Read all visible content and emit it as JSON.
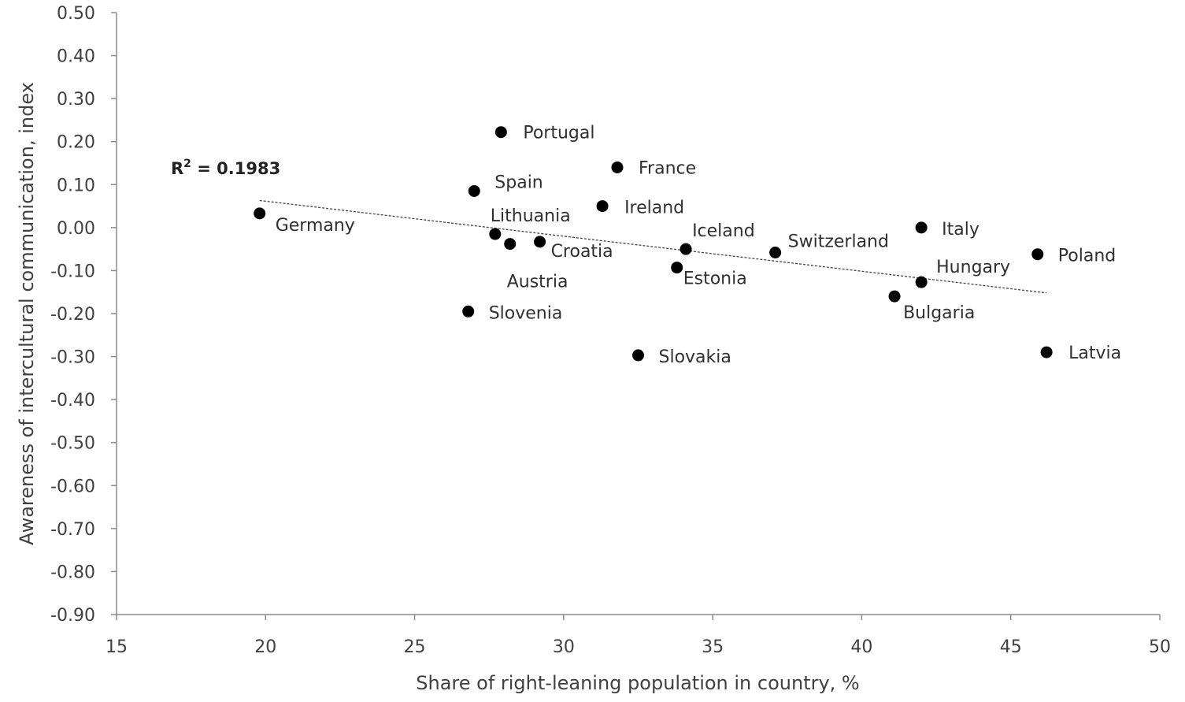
{
  "chart_data": {
    "type": "scatter",
    "title": "",
    "xlabel": "Share of right-leaning population in country, %",
    "ylabel": "Awareness of intercultural communication, index",
    "xlim": [
      15,
      50
    ],
    "ylim": [
      -0.9,
      0.5
    ],
    "x_ticks": [
      15,
      20,
      25,
      30,
      35,
      40,
      45,
      50
    ],
    "x_tick_labels": [
      "15",
      "20",
      "25",
      "30",
      "35",
      "40",
      "45",
      "50"
    ],
    "y_ticks": [
      0.5,
      0.4,
      0.3,
      0.2,
      0.1,
      0.0,
      -0.1,
      -0.2,
      -0.3,
      -0.4,
      -0.5,
      -0.6,
      -0.7,
      -0.8,
      -0.9
    ],
    "y_tick_labels": [
      "0.50",
      "0.40",
      "0.30",
      "0.20",
      "0.10",
      "0.00",
      "-0.10",
      "-0.20",
      "-0.30",
      "-0.40",
      "-0.50",
      "-0.60",
      "-0.70",
      "-0.80",
      "-0.90"
    ],
    "grid": false,
    "legend": "none",
    "points": [
      {
        "label": "Germany",
        "x": 19.8,
        "y": 0.033
      },
      {
        "label": "Portugal",
        "x": 27.9,
        "y": 0.222
      },
      {
        "label": "Spain",
        "x": 27.0,
        "y": 0.085
      },
      {
        "label": "France",
        "x": 31.8,
        "y": 0.14
      },
      {
        "label": "Ireland",
        "x": 31.3,
        "y": 0.05
      },
      {
        "label": "Lithuania",
        "x": 27.7,
        "y": -0.015
      },
      {
        "label": "Austria",
        "x": 28.2,
        "y": -0.038
      },
      {
        "label": "Croatia",
        "x": 29.2,
        "y": -0.033
      },
      {
        "label": "Iceland",
        "x": 34.1,
        "y": -0.05
      },
      {
        "label": "Estonia",
        "x": 33.8,
        "y": -0.093
      },
      {
        "label": "Switzerland",
        "x": 37.1,
        "y": -0.058
      },
      {
        "label": "Italy",
        "x": 42.0,
        "y": 0.0
      },
      {
        "label": "Poland",
        "x": 45.9,
        "y": -0.062
      },
      {
        "label": "Hungary",
        "x": 42.0,
        "y": -0.127
      },
      {
        "label": "Bulgaria",
        "x": 41.1,
        "y": -0.16
      },
      {
        "label": "Slovenia",
        "x": 26.8,
        "y": -0.195
      },
      {
        "label": "Slovakia",
        "x": 32.5,
        "y": -0.297
      },
      {
        "label": "Latvia",
        "x": 46.2,
        "y": -0.29
      }
    ],
    "trendline": {
      "type": "linear",
      "x": [
        19.8,
        46.2
      ],
      "y": [
        0.063,
        -0.152
      ]
    },
    "annotations": [
      {
        "text_main": "R",
        "text_sup": "2",
        "text_rest": " = 0.1983"
      }
    ]
  }
}
